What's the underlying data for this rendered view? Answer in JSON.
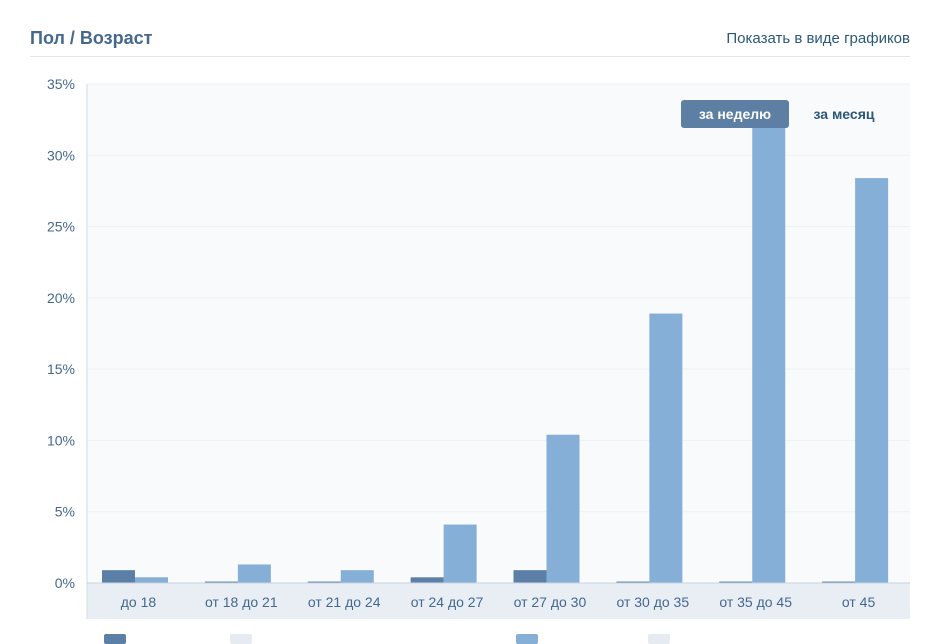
{
  "header": {
    "title": "Пол / Возраст",
    "show_graphs_link": "Показать в виде графиков"
  },
  "period_toggle": {
    "active_label": "за неделю",
    "inactive_label": "за месяц"
  },
  "colors": {
    "series_dark": "#5b7fa6",
    "series_light": "#85afd7",
    "grid": "#eef1f4",
    "plot_bg": "#f8fafc",
    "axis_band": "#e8eef4",
    "legend_light_swatch": "#e6ebf1"
  },
  "chart_data": {
    "type": "bar",
    "categories": [
      "до 18",
      "от 18 до 21",
      "от 21 до 24",
      "от 24 до 27",
      "от 27 до 30",
      "от 30 до 35",
      "от 35 до 45",
      "от 45"
    ],
    "series": [
      {
        "values": [
          0.9,
          0.1,
          0.1,
          0.4,
          0.9,
          0.1,
          0.1,
          0.1
        ]
      },
      {
        "values": [
          0.4,
          1.3,
          0.9,
          4.1,
          10.4,
          18.9,
          32.5,
          28.4
        ]
      }
    ],
    "y_ticks": [
      "0%",
      "5%",
      "10%",
      "15%",
      "20%",
      "25%",
      "30%",
      "35%"
    ],
    "ylim": [
      0,
      35
    ],
    "grid": true,
    "title": "",
    "xlabel": "",
    "ylabel": ""
  }
}
